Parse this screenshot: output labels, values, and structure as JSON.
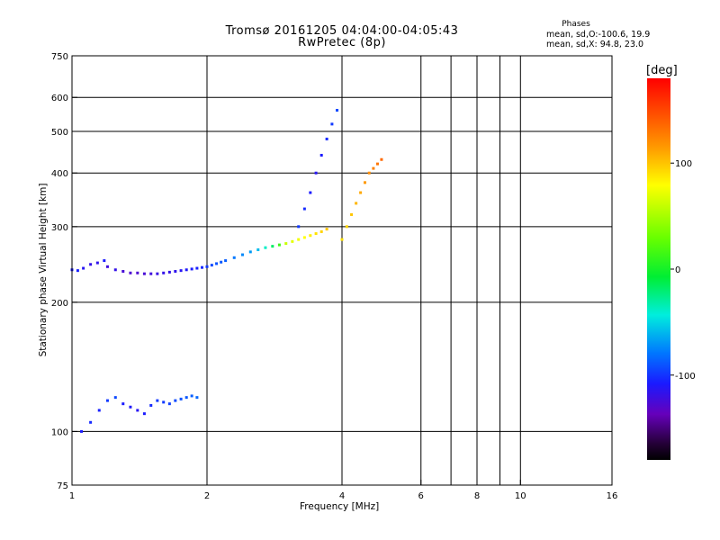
{
  "title_line1": "Tromsø 20161205 04:04:00-04:05:43",
  "title_line2": "RwPretec (8p)",
  "stats": {
    "heading": "Phases",
    "line_o": "mean, sd,O:-100.6, 19.9",
    "line_x": "mean, sd,X:  94.8, 23.0"
  },
  "colorbar": {
    "unit_label": "[deg]",
    "range": [
      -180,
      180
    ],
    "ticks": [
      100,
      0,
      -100
    ],
    "tick_labels": [
      "100",
      "0",
      "-100"
    ],
    "colormap": "rainbow"
  },
  "chart_data": {
    "type": "scatter",
    "title": "Tromsø 20161205 04:04:00-04:05:43",
    "subtitle": "RwPretec (8p)",
    "xlabel": "Frequency [MHz]",
    "ylabel": "Stationary phase Virtual Height [km]",
    "x_scale": "log2",
    "y_scale": "log",
    "xlim": [
      1,
      16
    ],
    "ylim": [
      75,
      750
    ],
    "x_ticks": [
      1,
      2,
      4,
      6,
      8,
      10,
      16
    ],
    "x_tick_labels": [
      "1",
      "2",
      "4",
      "6",
      "8",
      "10",
      "16"
    ],
    "x_grid": [
      2,
      4,
      6,
      7,
      8,
      9,
      10
    ],
    "y_ticks": [
      75,
      100,
      200,
      300,
      400,
      500,
      600,
      750
    ],
    "y_tick_labels": [
      "75",
      "100",
      "200",
      "300",
      "400",
      "500",
      "600",
      "750"
    ],
    "y_grid": [
      100,
      200,
      300,
      400,
      500,
      600
    ],
    "grid": true,
    "color_by": "phase",
    "series": [
      {
        "x": [
          1.0,
          1.03,
          1.06,
          1.1,
          1.14,
          1.18,
          1.2,
          1.25,
          1.3,
          1.35,
          1.4,
          1.45,
          1.5,
          1.55,
          1.6,
          1.65,
          1.7,
          1.75,
          1.8,
          1.85,
          1.9,
          1.95,
          2.0,
          2.05,
          2.1,
          2.15,
          2.2,
          2.3,
          2.4,
          2.5,
          2.6,
          2.7,
          2.8,
          2.9,
          3.0,
          3.1,
          3.2,
          3.3,
          3.4,
          3.5,
          3.6,
          3.7
        ],
        "y": [
          238,
          237,
          240,
          245,
          247,
          250,
          242,
          238,
          236,
          234,
          234,
          233,
          233,
          233,
          234,
          235,
          236,
          237,
          238,
          239,
          240,
          241,
          242,
          244,
          246,
          248,
          250,
          254,
          258,
          262,
          265,
          268,
          270,
          272,
          274,
          277,
          280,
          283,
          286,
          289,
          292,
          296
        ],
        "phase": [
          -110,
          -108,
          -115,
          -120,
          -118,
          -110,
          -125,
          -120,
          -128,
          -130,
          -130,
          -128,
          -125,
          -122,
          -120,
          -120,
          -118,
          -115,
          -112,
          -110,
          -108,
          -105,
          -100,
          -95,
          -92,
          -90,
          -88,
          -80,
          -75,
          -70,
          -60,
          -40,
          -20,
          10,
          60,
          70,
          75,
          80,
          85,
          90,
          95,
          100
        ]
      },
      {
        "x": [
          3.2,
          3.3,
          3.4,
          3.5,
          3.6,
          3.7,
          3.8,
          3.9,
          4.0,
          4.1,
          4.2,
          4.3,
          4.4,
          4.5,
          4.6,
          4.7,
          4.8,
          4.9
        ],
        "y": [
          300,
          330,
          360,
          400,
          440,
          480,
          520,
          560,
          280,
          300,
          320,
          340,
          360,
          380,
          400,
          410,
          420,
          430
        ],
        "phase": [
          -100,
          -105,
          -110,
          -115,
          -110,
          -105,
          -100,
          -95,
          90,
          95,
          100,
          105,
          110,
          115,
          120,
          125,
          130,
          135
        ]
      },
      {
        "x": [
          1.05,
          1.1,
          1.15,
          1.2,
          1.25,
          1.3,
          1.35,
          1.4,
          1.45,
          1.5,
          1.55,
          1.6,
          1.65,
          1.7,
          1.75,
          1.8,
          1.85,
          1.9
        ],
        "y": [
          100,
          105,
          112,
          118,
          120,
          116,
          114,
          112,
          110,
          115,
          118,
          117,
          116,
          118,
          119,
          120,
          121,
          120
        ],
        "phase": [
          -110,
          -105,
          -108,
          -100,
          -95,
          -110,
          -112,
          -115,
          -110,
          -105,
          -100,
          -100,
          -98,
          -95,
          -92,
          -90,
          -88,
          -85
        ]
      }
    ]
  }
}
